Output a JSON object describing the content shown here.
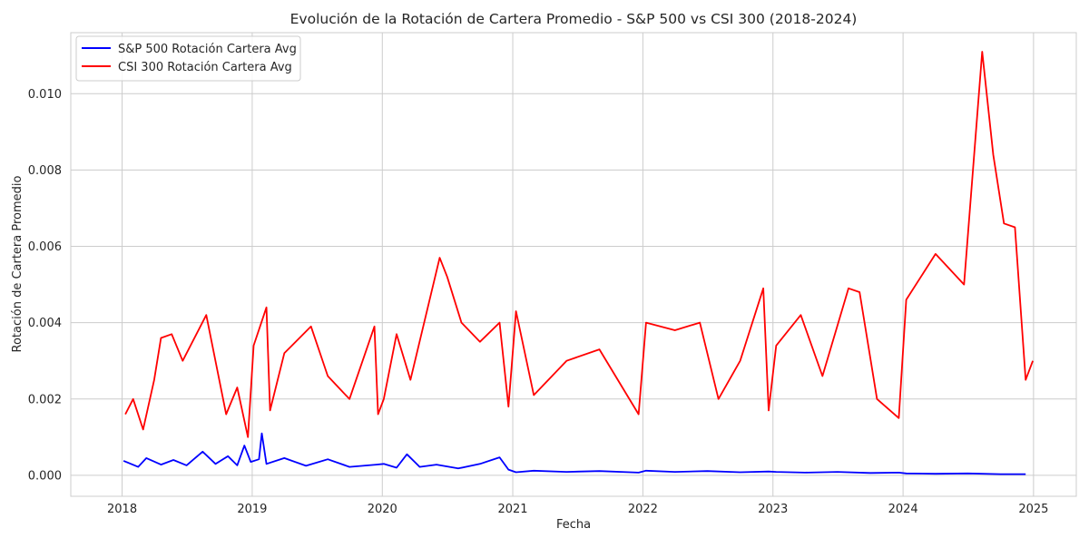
{
  "chart_data": {
    "type": "line",
    "title": "Evolución de la Rotación de Cartera Promedio - S&P 500 vs CSI 300 (2018-2024)",
    "xlabel": "Fecha",
    "ylabel": "Rotación de Cartera Promedio",
    "x_axis_type": "date",
    "xlim": [
      "2017-08-10",
      "2025-05-01"
    ],
    "ylim": [
      -0.00055,
      0.0116
    ],
    "x_ticks": [
      "2018",
      "2019",
      "2020",
      "2021",
      "2022",
      "2023",
      "2024",
      "2025"
    ],
    "y_ticks": [
      "0.000",
      "0.002",
      "0.004",
      "0.006",
      "0.008",
      "0.010"
    ],
    "grid": true,
    "legend_position": "top-left",
    "series": [
      {
        "name": "S&P 500 Rotación Cartera Avg",
        "color": "#0000ff",
        "points": [
          [
            "2018-01-05",
            0.00038
          ],
          [
            "2018-02-15",
            0.00022
          ],
          [
            "2018-03-10",
            0.00045
          ],
          [
            "2018-04-20",
            0.00028
          ],
          [
            "2018-05-25",
            0.0004
          ],
          [
            "2018-07-01",
            0.00026
          ],
          [
            "2018-08-15",
            0.00062
          ],
          [
            "2018-09-20",
            0.0003
          ],
          [
            "2018-10-25",
            0.0005
          ],
          [
            "2018-11-20",
            0.00026
          ],
          [
            "2018-12-10",
            0.00078
          ],
          [
            "2018-12-28",
            0.00035
          ],
          [
            "2019-01-20",
            0.00042
          ],
          [
            "2019-01-28",
            0.0011
          ],
          [
            "2019-02-10",
            0.0003
          ],
          [
            "2019-04-01",
            0.00045
          ],
          [
            "2019-06-01",
            0.00025
          ],
          [
            "2019-08-01",
            0.00042
          ],
          [
            "2019-10-01",
            0.00022
          ],
          [
            "2019-12-15",
            0.00028
          ],
          [
            "2020-01-05",
            0.0003
          ],
          [
            "2020-02-10",
            0.0002
          ],
          [
            "2020-03-10",
            0.00055
          ],
          [
            "2020-04-15",
            0.00022
          ],
          [
            "2020-06-01",
            0.00028
          ],
          [
            "2020-08-01",
            0.00018
          ],
          [
            "2020-10-01",
            0.0003
          ],
          [
            "2020-11-25",
            0.00047
          ],
          [
            "2020-12-20",
            0.00015
          ],
          [
            "2021-01-10",
            8e-05
          ],
          [
            "2021-03-01",
            0.00012
          ],
          [
            "2021-06-01",
            9e-05
          ],
          [
            "2021-09-01",
            0.00011
          ],
          [
            "2021-12-20",
            7e-05
          ],
          [
            "2022-01-10",
            0.00012
          ],
          [
            "2022-04-01",
            9e-05
          ],
          [
            "2022-07-01",
            0.00011
          ],
          [
            "2022-10-01",
            8e-05
          ],
          [
            "2022-12-20",
            0.0001
          ],
          [
            "2023-01-10",
            9e-05
          ],
          [
            "2023-04-01",
            7e-05
          ],
          [
            "2023-07-01",
            9e-05
          ],
          [
            "2023-10-01",
            6e-05
          ],
          [
            "2023-12-20",
            7e-05
          ],
          [
            "2024-01-10",
            5e-05
          ],
          [
            "2024-04-01",
            4e-05
          ],
          [
            "2024-07-01",
            5e-05
          ],
          [
            "2024-10-01",
            3e-05
          ],
          [
            "2024-12-10",
            3e-05
          ]
        ]
      },
      {
        "name": "CSI 300 Rotación Cartera Avg",
        "color": "#ff0000",
        "points": [
          [
            "2018-01-10",
            0.0016
          ],
          [
            "2018-02-01",
            0.002
          ],
          [
            "2018-03-01",
            0.0012
          ],
          [
            "2018-04-01",
            0.0025
          ],
          [
            "2018-04-20",
            0.0036
          ],
          [
            "2018-05-20",
            0.0037
          ],
          [
            "2018-06-20",
            0.003
          ],
          [
            "2018-08-25",
            0.0042
          ],
          [
            "2018-10-20",
            0.0016
          ],
          [
            "2018-11-20",
            0.0023
          ],
          [
            "2018-12-20",
            0.001
          ],
          [
            "2019-01-05",
            0.0034
          ],
          [
            "2019-02-10",
            0.0044
          ],
          [
            "2019-02-20",
            0.0017
          ],
          [
            "2019-04-01",
            0.0032
          ],
          [
            "2019-06-15",
            0.0039
          ],
          [
            "2019-08-01",
            0.0026
          ],
          [
            "2019-10-01",
            0.002
          ],
          [
            "2019-12-10",
            0.0039
          ],
          [
            "2019-12-20",
            0.0016
          ],
          [
            "2020-01-05",
            0.002
          ],
          [
            "2020-02-10",
            0.0037
          ],
          [
            "2020-03-20",
            0.0025
          ],
          [
            "2020-06-10",
            0.0057
          ],
          [
            "2020-07-01",
            0.0052
          ],
          [
            "2020-08-10",
            0.004
          ],
          [
            "2020-10-01",
            0.0035
          ],
          [
            "2020-11-25",
            0.004
          ],
          [
            "2020-12-20",
            0.0018
          ],
          [
            "2021-01-10",
            0.0043
          ],
          [
            "2021-03-01",
            0.0021
          ],
          [
            "2021-06-01",
            0.003
          ],
          [
            "2021-09-01",
            0.0033
          ],
          [
            "2021-12-20",
            0.0016
          ],
          [
            "2022-01-10",
            0.004
          ],
          [
            "2022-04-01",
            0.0038
          ],
          [
            "2022-06-10",
            0.004
          ],
          [
            "2022-08-01",
            0.002
          ],
          [
            "2022-10-01",
            0.003
          ],
          [
            "2022-12-05",
            0.0049
          ],
          [
            "2022-12-20",
            0.0017
          ],
          [
            "2023-01-10",
            0.0034
          ],
          [
            "2023-03-20",
            0.0042
          ],
          [
            "2023-05-20",
            0.0026
          ],
          [
            "2023-08-01",
            0.0049
          ],
          [
            "2023-09-01",
            0.0048
          ],
          [
            "2023-10-20",
            0.002
          ],
          [
            "2023-12-20",
            0.0015
          ],
          [
            "2024-01-10",
            0.0046
          ],
          [
            "2024-04-01",
            0.0058
          ],
          [
            "2024-06-20",
            0.005
          ],
          [
            "2024-08-10",
            0.0111
          ],
          [
            "2024-09-10",
            0.0084
          ],
          [
            "2024-10-10",
            0.0066
          ],
          [
            "2024-11-10",
            0.0065
          ],
          [
            "2024-12-10",
            0.0025
          ],
          [
            "2024-12-30",
            0.003
          ]
        ]
      }
    ]
  }
}
